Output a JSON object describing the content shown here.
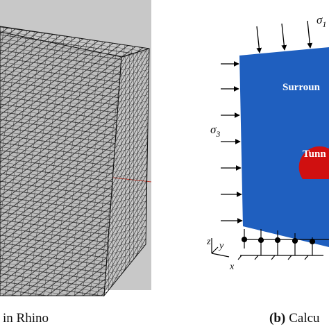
{
  "panel_a": {
    "caption": "in Rhino"
  },
  "panel_b": {
    "caption_label": "(b)",
    "caption_text": "Calcu",
    "sigma1": {
      "symbol": "σ",
      "subscript": "1"
    },
    "sigma3": {
      "symbol": "σ",
      "subscript": "3"
    },
    "region_label": "Surroun",
    "tunnel_label": "Tunn",
    "axes": {
      "z": "z",
      "y": "y",
      "x": "x"
    }
  }
}
